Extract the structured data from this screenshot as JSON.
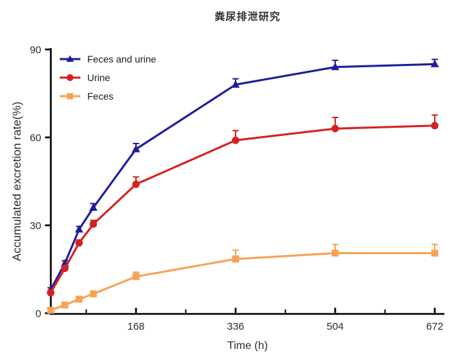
{
  "chart_data": {
    "type": "line",
    "title": "粪尿排泄研究",
    "xlabel": "Time (h)",
    "ylabel": "Accumulated excretion rate(%)",
    "x": [
      24,
      48,
      72,
      96,
      168,
      336,
      504,
      672
    ],
    "xlim": [
      24,
      688
    ],
    "ylim": [
      0,
      90
    ],
    "x_ticks": [
      168,
      336,
      504,
      672
    ],
    "x_minor_ticks": [
      84,
      252,
      420,
      588
    ],
    "y_ticks": [
      0,
      30,
      60,
      90
    ],
    "grid": false,
    "legend_position": "top-left-inside",
    "error_bars": "upper-only",
    "axis_color": "#000000",
    "text_color": "#2d2d2d",
    "series": [
      {
        "name": "Feces and urine",
        "marker": "triangle",
        "color": "#1E1E9C",
        "values": [
          8,
          17,
          28.6,
          36,
          56,
          78,
          84,
          85
        ],
        "errors_up": [
          0.7,
          0.9,
          1.0,
          1.4,
          1.9,
          2.0,
          2.3,
          1.6
        ]
      },
      {
        "name": "Urine",
        "marker": "circle",
        "color": "#D42221",
        "values": [
          7,
          15.3,
          24,
          30.4,
          44,
          59,
          63,
          64
        ],
        "errors_up": [
          0.8,
          0.9,
          1.0,
          1.3,
          2.5,
          3.3,
          3.8,
          3.6
        ]
      },
      {
        "name": "Feces",
        "marker": "square",
        "color": "#F8A254",
        "values": [
          1,
          2.8,
          4.8,
          6.6,
          12.5,
          18.5,
          20.5,
          20.5
        ],
        "errors_up": [
          0.5,
          0.6,
          0.8,
          1.0,
          1.5,
          3.0,
          3.0,
          3.0
        ]
      }
    ]
  }
}
